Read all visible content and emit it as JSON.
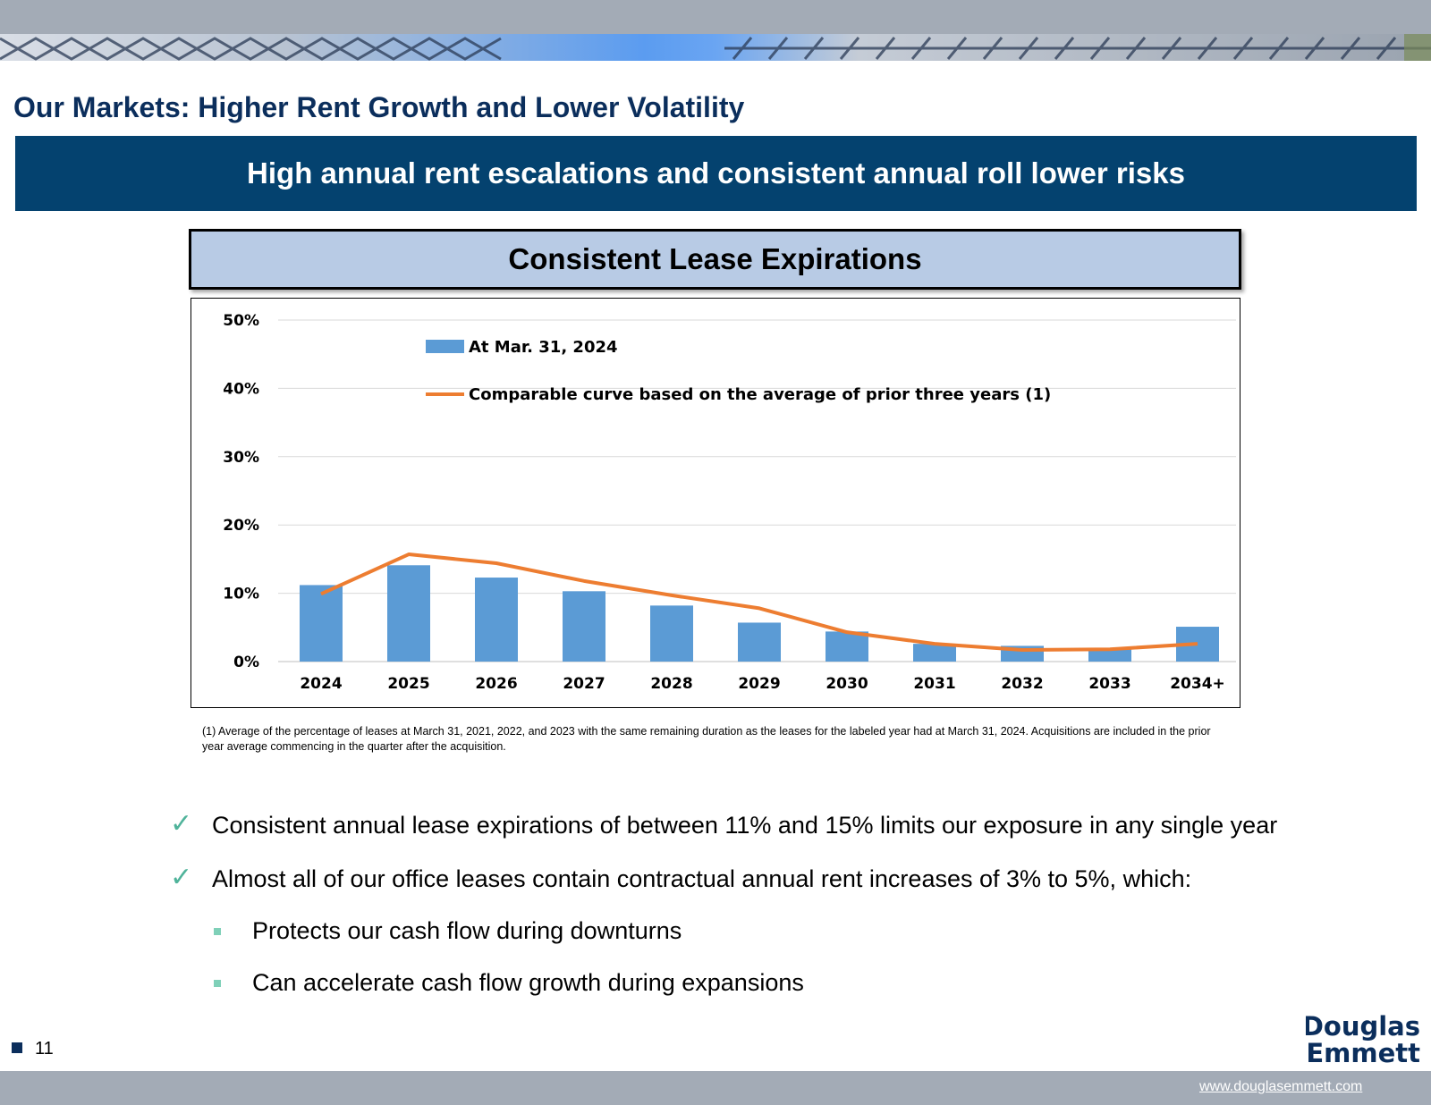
{
  "page": {
    "title": "Our Markets: Higher Rent Growth and Lower Volatility",
    "banner_heading": "High annual rent escalations and consistent annual roll lower risks",
    "page_number": "11",
    "website": "www.douglasemmett.com",
    "logo_text": [
      "Douglas",
      "Emmett"
    ]
  },
  "chart_data": {
    "type": "bar",
    "title": "Consistent Lease Expirations",
    "categories": [
      "2024",
      "2025",
      "2026",
      "2027",
      "2028",
      "2029",
      "2030",
      "2031",
      "2032",
      "2033",
      "2034+"
    ],
    "series": [
      {
        "name": "At Mar. 31, 2024",
        "type": "bar",
        "values": [
          11.2,
          14.1,
          12.3,
          10.3,
          8.2,
          5.7,
          4.4,
          2.6,
          2.3,
          1.9,
          5.1
        ],
        "color": "#5b9bd5"
      },
      {
        "name": "Comparable curve based on the average of prior three years (1)",
        "type": "line",
        "values": [
          9.9,
          15.7,
          14.4,
          11.8,
          9.7,
          7.8,
          4.3,
          2.6,
          1.7,
          1.8,
          2.6
        ],
        "color": "#ed7d31"
      }
    ],
    "yticks": [
      "0%",
      "10%",
      "20%",
      "30%",
      "40%",
      "50%"
    ],
    "ylim": [
      0,
      50
    ],
    "grid": true,
    "legend_position": "top-left-inside"
  },
  "footnote": "(1) Average of the percentage of leases at March 31, 2021, 2022, and 2023 with the same remaining duration as the leases for the labeled year had at March 31, 2024. Acquisitions are included in the prior year average commencing in the quarter after the acquisition.",
  "bullets": [
    "Consistent annual lease expirations of between 11% and 15% limits our exposure in any single year",
    "Almost all of our office leases contain contractual annual rent increases of 3% to 5%, which:"
  ],
  "sub_bullets": [
    "Protects our cash flow during downturns",
    "Can accelerate cash flow growth during expansions"
  ],
  "colors": {
    "title_navy": "#0b2e5c",
    "banner_blue": "#04426f",
    "chart_title_fill": "#b8cbe5",
    "check_green": "#4fb39a",
    "band_grey": "#a3abb6"
  }
}
